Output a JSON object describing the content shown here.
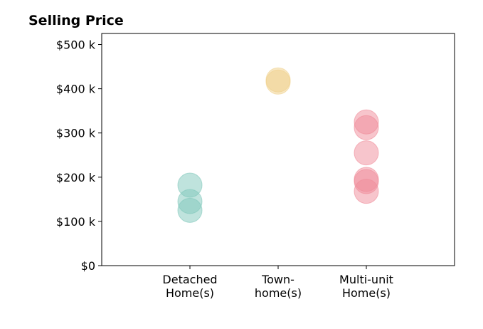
{
  "chart_data": {
    "type": "scatter",
    "title": "Selling Price",
    "xlabel": "",
    "ylabel": "",
    "categories": [
      [
        "Detached",
        "Home(s)"
      ],
      [
        "Town-",
        "home(s)"
      ],
      [
        "Multi-unit",
        "Home(s)"
      ]
    ],
    "xlim": [
      0,
      4
    ],
    "ylim": [
      0,
      525000
    ],
    "yticks": [
      0,
      100000,
      200000,
      300000,
      400000,
      500000
    ],
    "ytick_labels": [
      "$0",
      "$100 k",
      "$200 k",
      "$300 k",
      "$400 k",
      "$500 k"
    ],
    "grid": false,
    "series": [
      {
        "category_index": 0,
        "color": "#80c8bb",
        "values": [
          125000,
          145000,
          182000
        ]
      },
      {
        "category_index": 1,
        "color": "#f0d08a",
        "values": [
          415000,
          420000
        ]
      },
      {
        "category_index": 2,
        "color": "#f08c9a",
        "values": [
          168000,
          190000,
          195000,
          255000,
          312000,
          325000
        ]
      }
    ]
  }
}
